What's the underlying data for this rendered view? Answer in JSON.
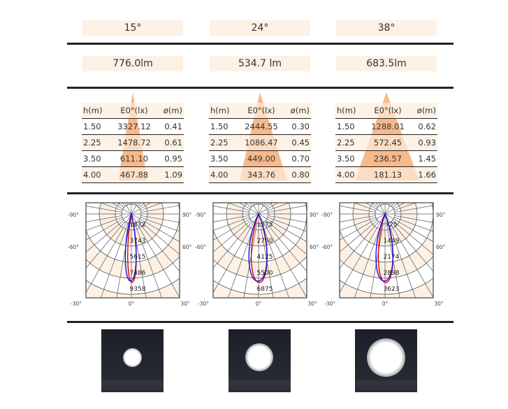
{
  "columns": [
    {
      "beam_angle": "15°",
      "lumen": "776.0lm",
      "table": {
        "headers": [
          "h(m)",
          "E0°(lx)",
          "ø(m)"
        ],
        "rows": [
          [
            "1.50",
            "3327.12",
            "0.41"
          ],
          [
            "2.25",
            "1478.72",
            "0.61"
          ],
          [
            "3.50",
            "611.10",
            "0.95"
          ],
          [
            "4.00",
            "467.88",
            "1.09"
          ]
        ]
      },
      "polar": {
        "rings": [
          "1872",
          "3743",
          "5615",
          "7486",
          "9358"
        ],
        "angles": {
          "left_top": "-90°",
          "right_top": "90°",
          "left_mid": "-60°",
          "right_mid": "60°",
          "left_bottom": "-30°",
          "center": "0°",
          "right_bottom": "30°"
        }
      },
      "spot_size": 0.3
    },
    {
      "beam_angle": "24°",
      "lumen": "534.7 lm",
      "table": {
        "headers": [
          "h(m)",
          "E0°(lx)",
          "ø(m)"
        ],
        "rows": [
          [
            "1.50",
            "2444.55",
            "0.30"
          ],
          [
            "2.25",
            "1086.47",
            "0.45"
          ],
          [
            "3.50",
            "449.00",
            "0.70"
          ],
          [
            "4.00",
            "343.76",
            "0.80"
          ]
        ]
      },
      "polar": {
        "rings": [
          "1375",
          "2750",
          "4125",
          "5500",
          "6875"
        ],
        "angles": {
          "left_top": "-90°",
          "right_top": "90°",
          "left_mid": "-60°",
          "right_mid": "60°",
          "left_bottom": "-30°",
          "center": "0°",
          "right_bottom": "30°"
        }
      },
      "spot_size": 0.45
    },
    {
      "beam_angle": "38°",
      "lumen": "683.5lm",
      "table": {
        "headers": [
          "h(m)",
          "E0°(lx)",
          "ø(m)"
        ],
        "rows": [
          [
            "1.50",
            "1288.01",
            "0.62"
          ],
          [
            "2.25",
            "572.45",
            "0.93"
          ],
          [
            "3.50",
            "236.57",
            "1.45"
          ],
          [
            "4.00",
            "181.13",
            "1.66"
          ]
        ]
      },
      "polar": {
        "rings": [
          "725",
          "1449",
          "2174",
          "2898",
          "3623"
        ],
        "angles": {
          "left_top": "-90°",
          "right_top": "90°",
          "left_mid": "-60°",
          "right_mid": "60°",
          "left_bottom": "-30°",
          "center": "0°",
          "right_bottom": "30°"
        }
      },
      "spot_size": 0.62
    }
  ],
  "colors": {
    "triangle": "#f8b98a",
    "band": "#fdf1e6",
    "c0": "#e00000",
    "c90": "#1010ee"
  }
}
